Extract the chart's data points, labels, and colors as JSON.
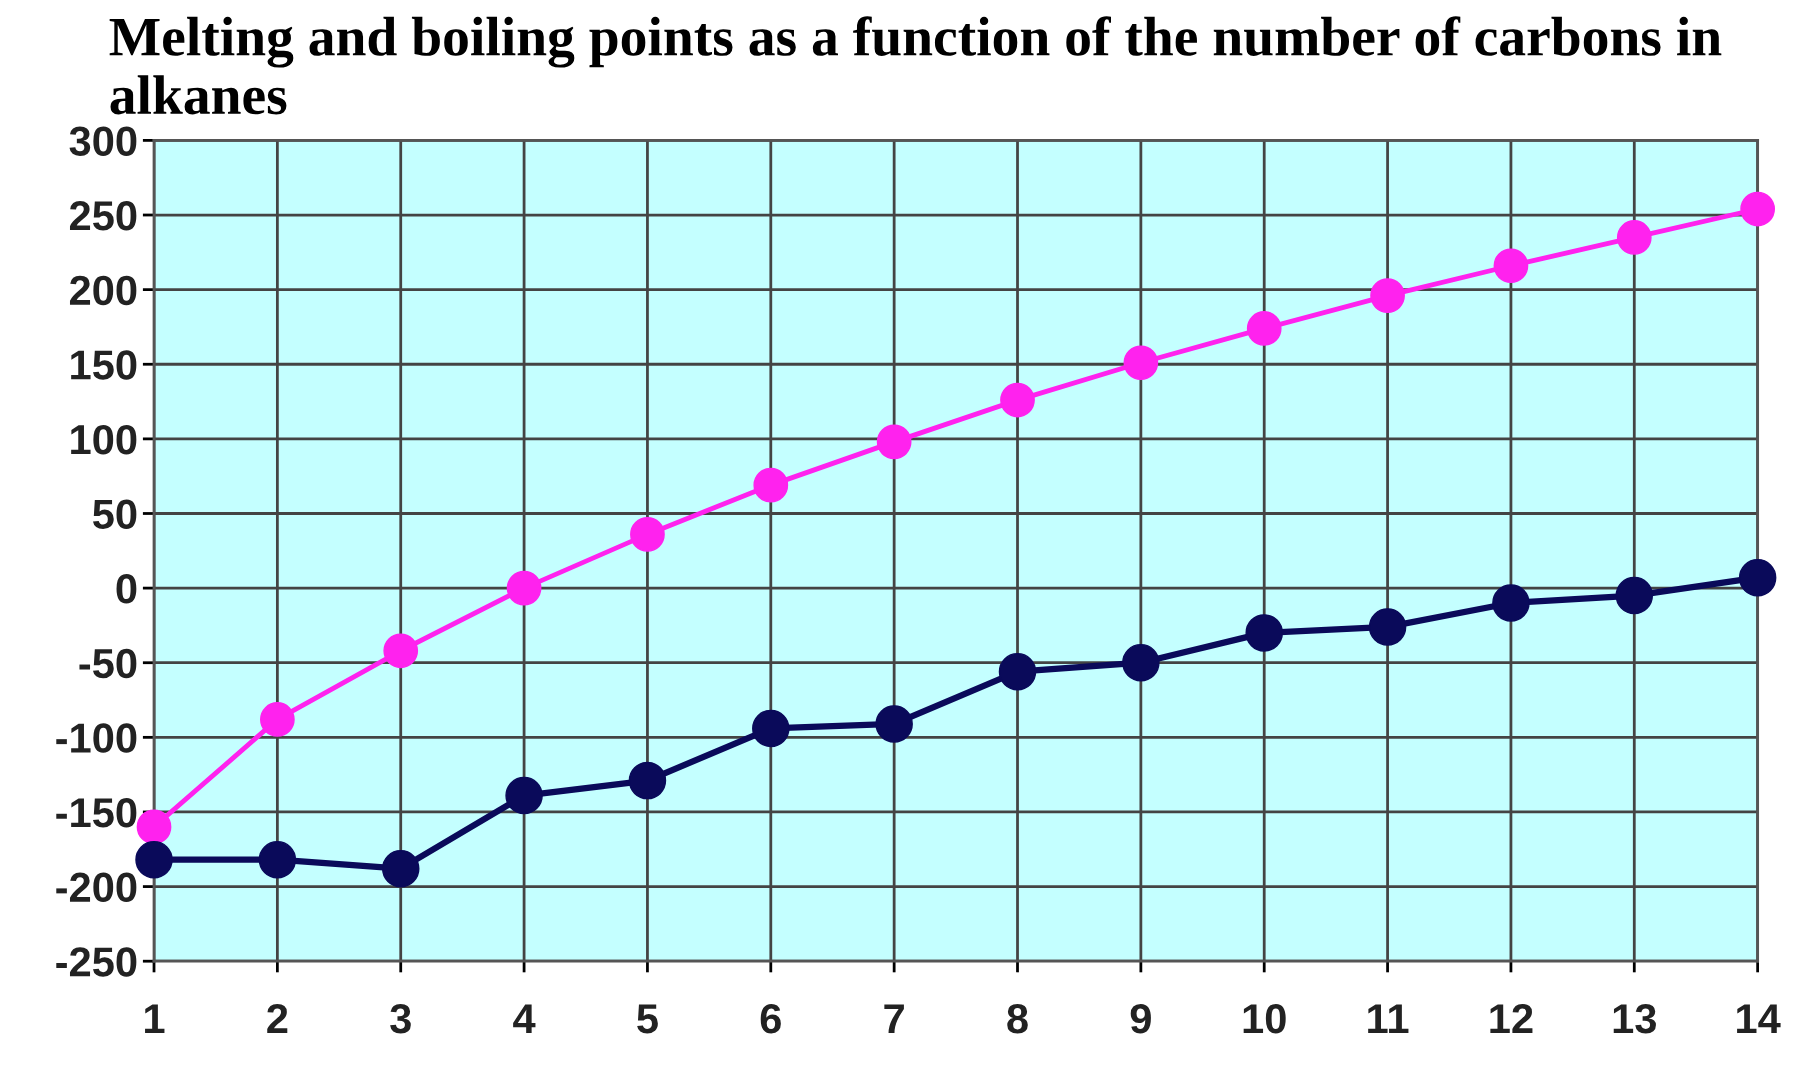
{
  "chart_data": {
    "type": "line",
    "title": "Melting and boiling points as a function of the number of carbons in alkanes",
    "x": [
      1,
      2,
      3,
      4,
      5,
      6,
      7,
      8,
      9,
      10,
      11,
      12,
      13,
      14
    ],
    "series": [
      {
        "color": "#ff22ee",
        "values": [
          -160,
          -88,
          -42,
          0,
          36,
          69,
          98,
          126,
          151,
          174,
          196,
          216,
          235,
          254
        ]
      },
      {
        "color": "#0a0a5a",
        "values": [
          -182,
          -182,
          -188,
          -139,
          -129,
          -94,
          -91,
          -56,
          -50,
          -30,
          -26,
          -10,
          -5,
          7
        ]
      }
    ],
    "xlim": [
      1,
      14
    ],
    "xticks": [
      1,
      2,
      3,
      4,
      5,
      6,
      7,
      8,
      9,
      10,
      11,
      12,
      13,
      14
    ],
    "ylim": [
      -250,
      300
    ],
    "yticks": [
      -250,
      -200,
      -150,
      -100,
      -50,
      0,
      50,
      100,
      150,
      200,
      250,
      300
    ],
    "grid": true,
    "marker": "circle",
    "line_style": "solid",
    "legend": false
  }
}
